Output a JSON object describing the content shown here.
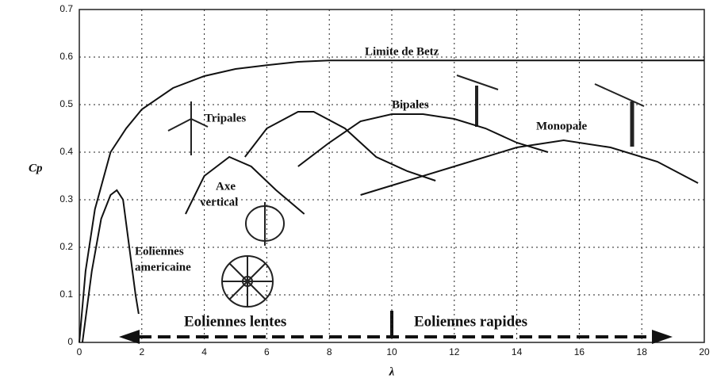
{
  "chart_data": {
    "type": "line",
    "xlabel": "λ",
    "ylabel": "Cp",
    "xlim": [
      0,
      20
    ],
    "ylim": [
      0,
      0.7
    ],
    "xticks": [
      0,
      2,
      4,
      6,
      8,
      10,
      12,
      14,
      16,
      18,
      20
    ],
    "yticks": [
      0,
      0.1,
      0.2,
      0.3,
      0.4,
      0.5,
      0.6,
      0.7
    ],
    "grid": true,
    "series": [
      {
        "name": "Limite de Betz",
        "color": "#111111",
        "x": [
          0,
          0.2,
          0.5,
          1,
          1.5,
          2,
          3,
          4,
          5,
          6,
          7,
          8,
          20
        ],
        "values": [
          0,
          0.15,
          0.28,
          0.4,
          0.45,
          0.49,
          0.535,
          0.56,
          0.575,
          0.583,
          0.59,
          0.593,
          0.593
        ]
      },
      {
        "color": "#111111",
        "x": [
          0.1,
          0.4,
          0.7,
          1.0,
          1.2,
          1.4,
          1.6,
          1.8,
          1.9
        ],
        "values": [
          0,
          0.15,
          0.26,
          0.31,
          0.32,
          0.3,
          0.2,
          0.1,
          0.06
        ]
      },
      {
        "color": "#111111",
        "x": [
          3.4,
          4,
          4.8,
          5.5,
          6.3,
          7.2
        ],
        "values": [
          0.27,
          0.35,
          0.39,
          0.37,
          0.32,
          0.27
        ]
      },
      {
        "name": "Tripales",
        "color": "#111111",
        "x": [
          5.3,
          6,
          7,
          7.5,
          8.5,
          9.5,
          10.5,
          11.4
        ],
        "values": [
          0.39,
          0.45,
          0.485,
          0.485,
          0.45,
          0.39,
          0.36,
          0.34
        ]
      },
      {
        "name": "Bipales",
        "color": "#111111",
        "x": [
          7,
          8,
          9,
          10,
          11,
          12,
          13,
          14,
          15
        ],
        "values": [
          0.37,
          0.42,
          0.465,
          0.48,
          0.48,
          0.47,
          0.45,
          0.42,
          0.4
        ]
      },
      {
        "name": "Monopale",
        "color": "#111111",
        "x": [
          9,
          10,
          12,
          14,
          15.5,
          17,
          18.5,
          19.8
        ],
        "values": [
          0.31,
          0.33,
          0.37,
          0.41,
          0.425,
          0.41,
          0.38,
          0.335
        ]
      }
    ],
    "annotations": [
      "Axe",
      "vertical",
      "Eoliennes",
      "americaine",
      "Eoliennes lentes",
      "Eoliennes rapides"
    ]
  }
}
